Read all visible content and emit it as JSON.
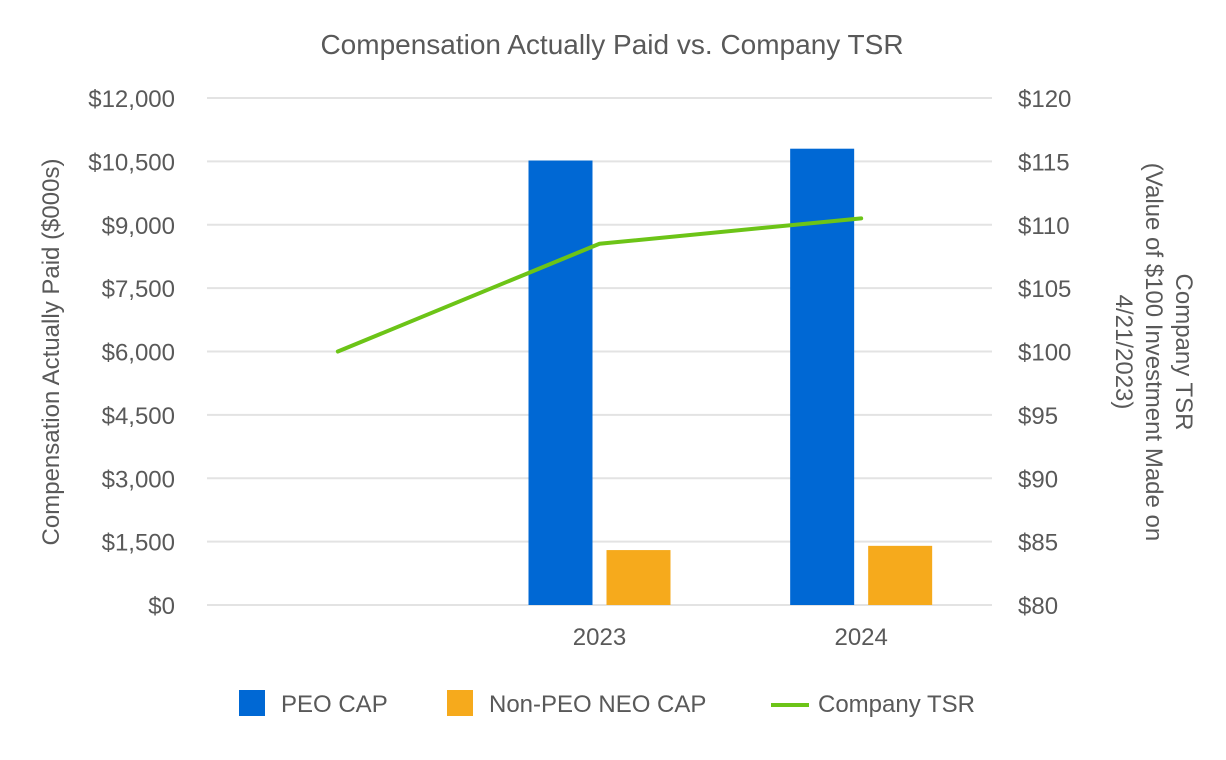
{
  "chart_data": {
    "type": "bar",
    "title": "Compensation Actually Paid vs. Company TSR",
    "categories": [
      "",
      "2023",
      "2024"
    ],
    "y_left": {
      "label": "Compensation Actually Paid ($000s)",
      "range": [
        0,
        12000
      ],
      "ticks": [
        "$0",
        "$1,500",
        "$3,000",
        "$4,500",
        "$6,000",
        "$7,500",
        "$9,000",
        "$10,500",
        "$12,000"
      ]
    },
    "y_right": {
      "label_lines": [
        "Company TSR",
        "(Value of $100 Investment Made on",
        "4/21/2023)"
      ],
      "range": [
        80,
        120
      ],
      "ticks": [
        "$80",
        "$85",
        "$90",
        "$95",
        "$100",
        "$105",
        "$110",
        "$115",
        "$120"
      ]
    },
    "series": [
      {
        "name": "PEO CAP",
        "kind": "bar",
        "axis": "left",
        "color": "#0068D4",
        "values": [
          null,
          10520,
          10800
        ]
      },
      {
        "name": "Non-PEO NEO CAP",
        "kind": "bar",
        "axis": "left",
        "color": "#F6AA1C",
        "values": [
          null,
          1300,
          1400
        ]
      },
      {
        "name": "Company TSR",
        "kind": "line",
        "axis": "right",
        "color": "#6CC417",
        "values": [
          100,
          108.5,
          110.5
        ]
      }
    ],
    "legend_position": "bottom",
    "grid": true
  }
}
